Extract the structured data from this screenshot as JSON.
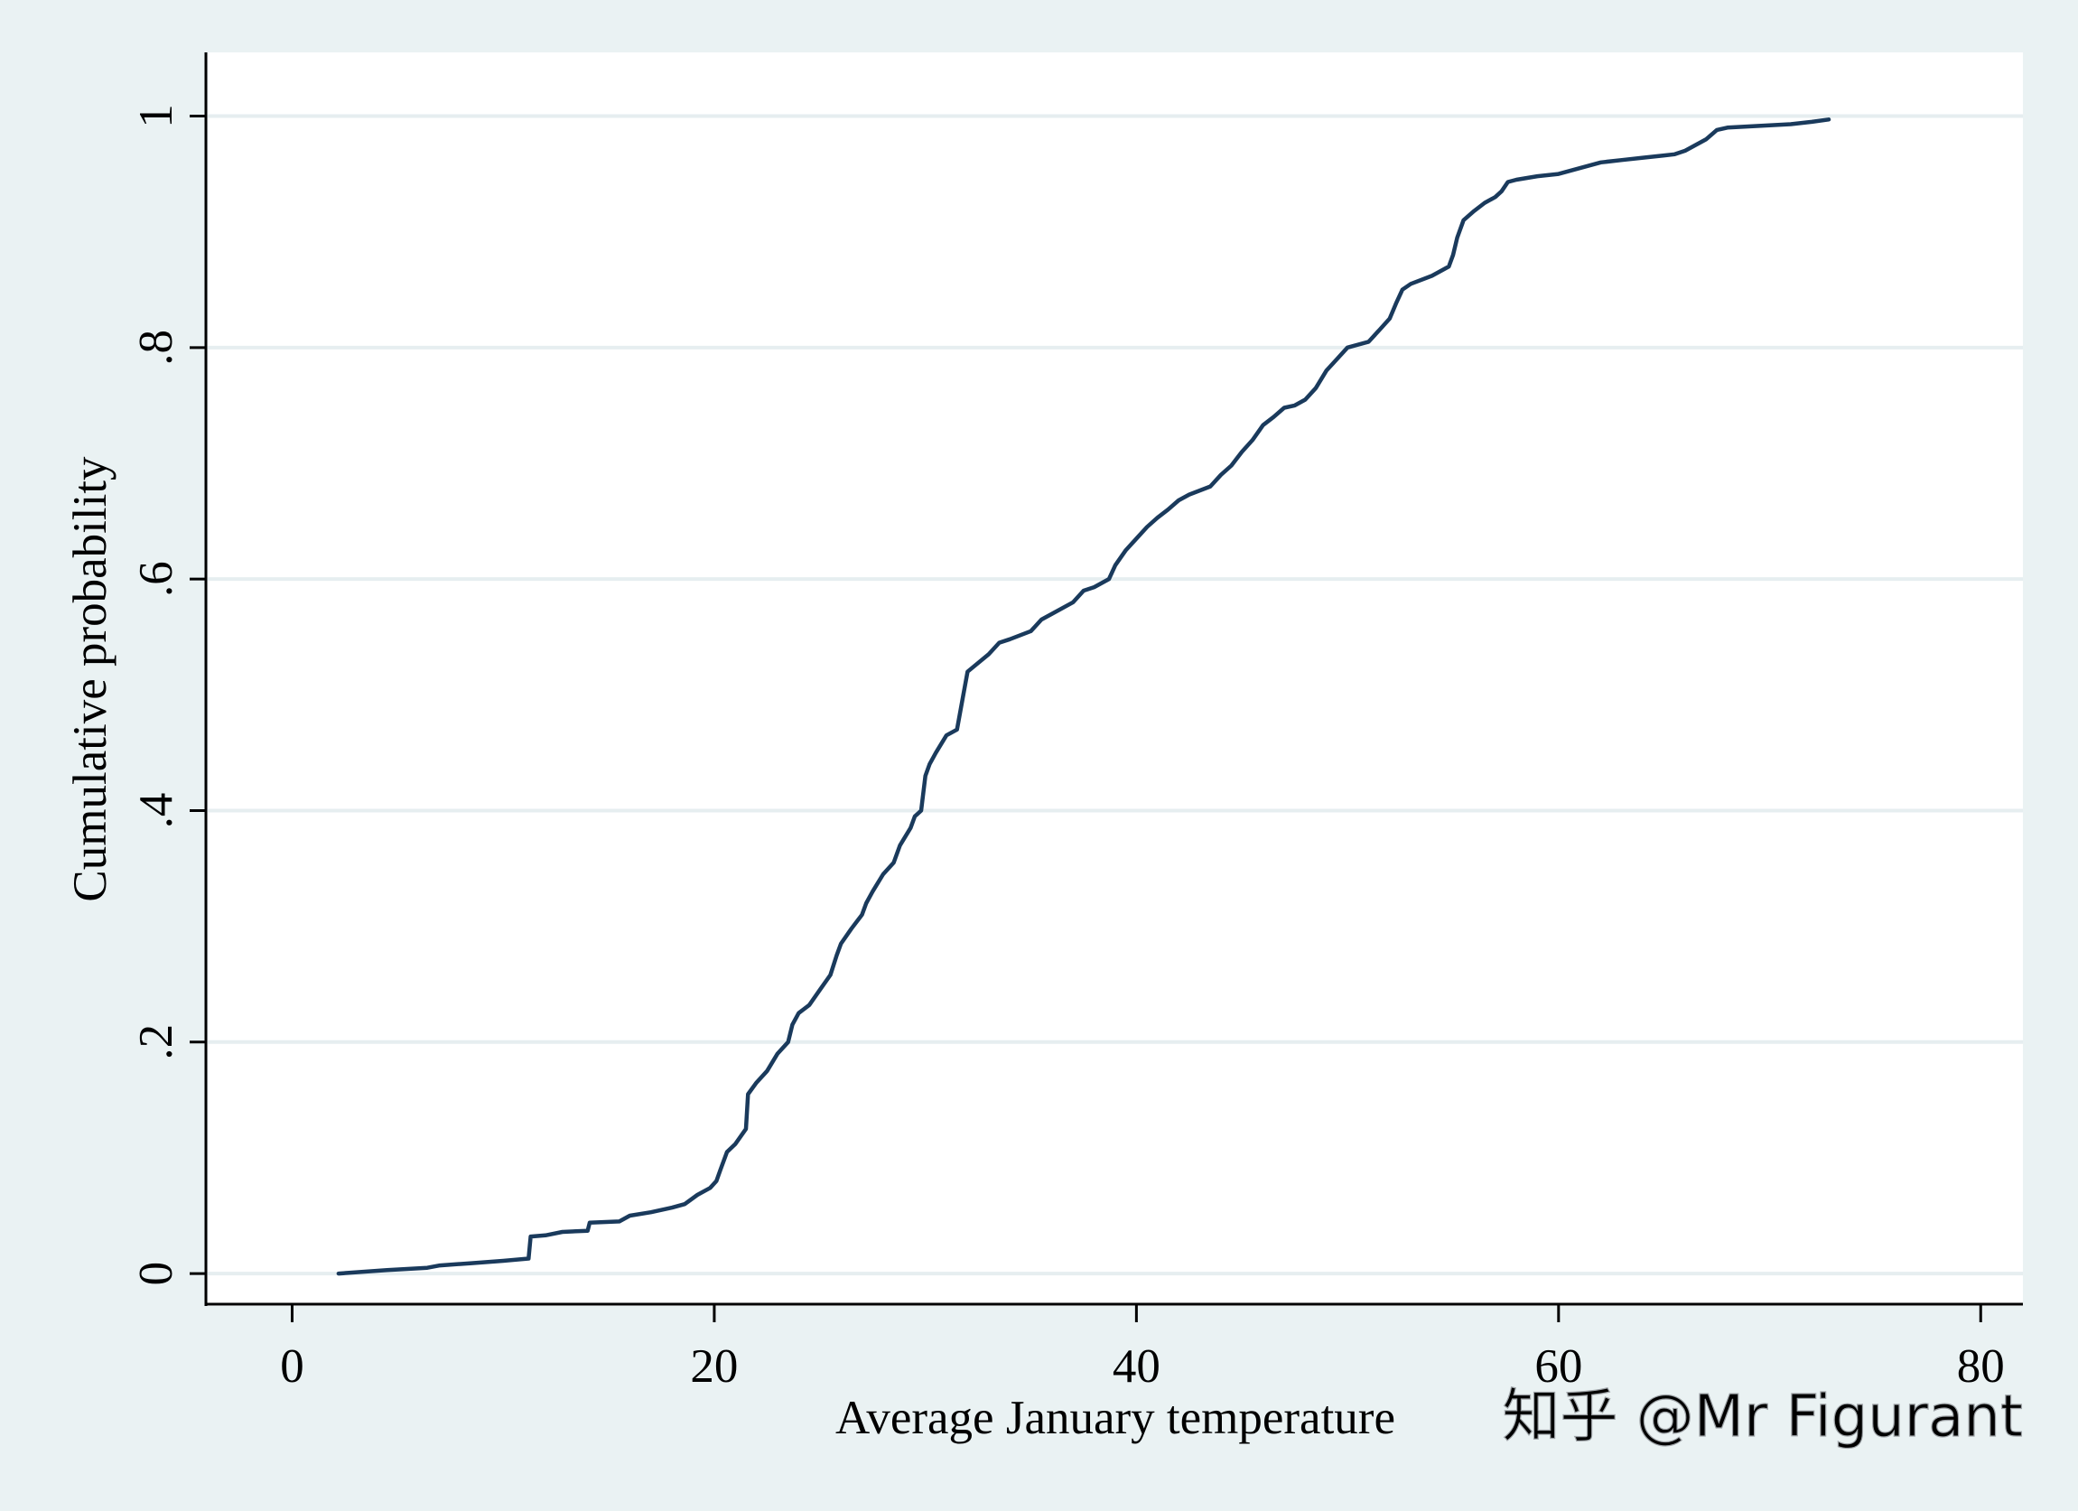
{
  "chart_data": {
    "type": "line",
    "title": "",
    "xlabel": "Average January temperature",
    "ylabel": "Cumulative probability",
    "xlim": [
      -4,
      82
    ],
    "ylim": [
      -0.028,
      1.055
    ],
    "x_ticks": [
      {
        "value": 0,
        "label": "0"
      },
      {
        "value": 20,
        "label": "20"
      },
      {
        "value": 40,
        "label": "40"
      },
      {
        "value": 60,
        "label": "60"
      },
      {
        "value": 80,
        "label": "80"
      }
    ],
    "y_ticks": [
      {
        "value": 0,
        "label": "0"
      },
      {
        "value": 0.2,
        "label": ".2"
      },
      {
        "value": 0.4,
        "label": ".4"
      },
      {
        "value": 0.6,
        "label": ".6"
      },
      {
        "value": 0.8,
        "label": ".8"
      },
      {
        "value": 1,
        "label": "1"
      }
    ],
    "grid": true,
    "legend": "none",
    "line_color": "#1a3a5c",
    "series": [
      {
        "name": "",
        "x": [
          2.2,
          4.5,
          6.4,
          7.0,
          8.5,
          10.0,
          11.2,
          11.3,
          12.0,
          12.8,
          14.0,
          14.1,
          15.5,
          16.0,
          17.0,
          18.0,
          18.6,
          19.2,
          19.8,
          20.1,
          20.3,
          20.6,
          21.0,
          21.5,
          21.6,
          22.0,
          22.5,
          23.0,
          23.5,
          23.7,
          24.0,
          24.5,
          25.0,
          25.5,
          25.8,
          26.0,
          26.5,
          27.0,
          27.2,
          27.5,
          28.0,
          28.5,
          28.8,
          29.3,
          29.5,
          29.8,
          30.0,
          30.2,
          30.5,
          31.0,
          31.5,
          31.8,
          32.0,
          33.0,
          33.5,
          34.0,
          35.0,
          35.5,
          36.0,
          37.0,
          37.5,
          38.0,
          38.7,
          39.0,
          39.5,
          40.0,
          40.5,
          41.0,
          41.5,
          42.0,
          42.5,
          43.5,
          44.0,
          44.5,
          45.0,
          45.5,
          46.0,
          46.5,
          47.0,
          47.5,
          48.0,
          48.5,
          49.0,
          49.5,
          50.0,
          51.0,
          51.5,
          52.0,
          52.3,
          52.6,
          53.0,
          54.0,
          54.8,
          55.0,
          55.2,
          55.5,
          56.0,
          56.5,
          57.0,
          57.3,
          57.6,
          58.0,
          59.0,
          60.0,
          61.0,
          62.0,
          63.0,
          64.0,
          65.0,
          65.5,
          66.0,
          66.5,
          67.0,
          67.5,
          68.0,
          70.0,
          71.0,
          72.0,
          72.8
        ],
        "y": [
          0.0,
          0.003,
          0.005,
          0.007,
          0.009,
          0.011,
          0.013,
          0.032,
          0.033,
          0.036,
          0.037,
          0.044,
          0.045,
          0.05,
          0.053,
          0.057,
          0.06,
          0.068,
          0.074,
          0.08,
          0.09,
          0.105,
          0.112,
          0.125,
          0.155,
          0.165,
          0.175,
          0.19,
          0.2,
          0.215,
          0.225,
          0.232,
          0.245,
          0.258,
          0.275,
          0.285,
          0.298,
          0.31,
          0.32,
          0.33,
          0.345,
          0.355,
          0.37,
          0.385,
          0.395,
          0.4,
          0.43,
          0.44,
          0.45,
          0.465,
          0.47,
          0.5,
          0.52,
          0.535,
          0.545,
          0.548,
          0.555,
          0.565,
          0.57,
          0.58,
          0.59,
          0.593,
          0.6,
          0.612,
          0.625,
          0.635,
          0.645,
          0.653,
          0.66,
          0.668,
          0.673,
          0.68,
          0.69,
          0.698,
          0.71,
          0.72,
          0.733,
          0.74,
          0.748,
          0.75,
          0.755,
          0.765,
          0.78,
          0.79,
          0.8,
          0.805,
          0.815,
          0.825,
          0.838,
          0.85,
          0.855,
          0.862,
          0.87,
          0.88,
          0.895,
          0.91,
          0.918,
          0.925,
          0.93,
          0.935,
          0.943,
          0.945,
          0.948,
          0.95,
          0.955,
          0.96,
          0.962,
          0.964,
          0.966,
          0.967,
          0.97,
          0.975,
          0.98,
          0.988,
          0.99,
          0.992,
          0.993,
          0.995,
          0.997
        ]
      }
    ]
  },
  "watermark": {
    "text": "知乎 @Mr Figurant"
  }
}
